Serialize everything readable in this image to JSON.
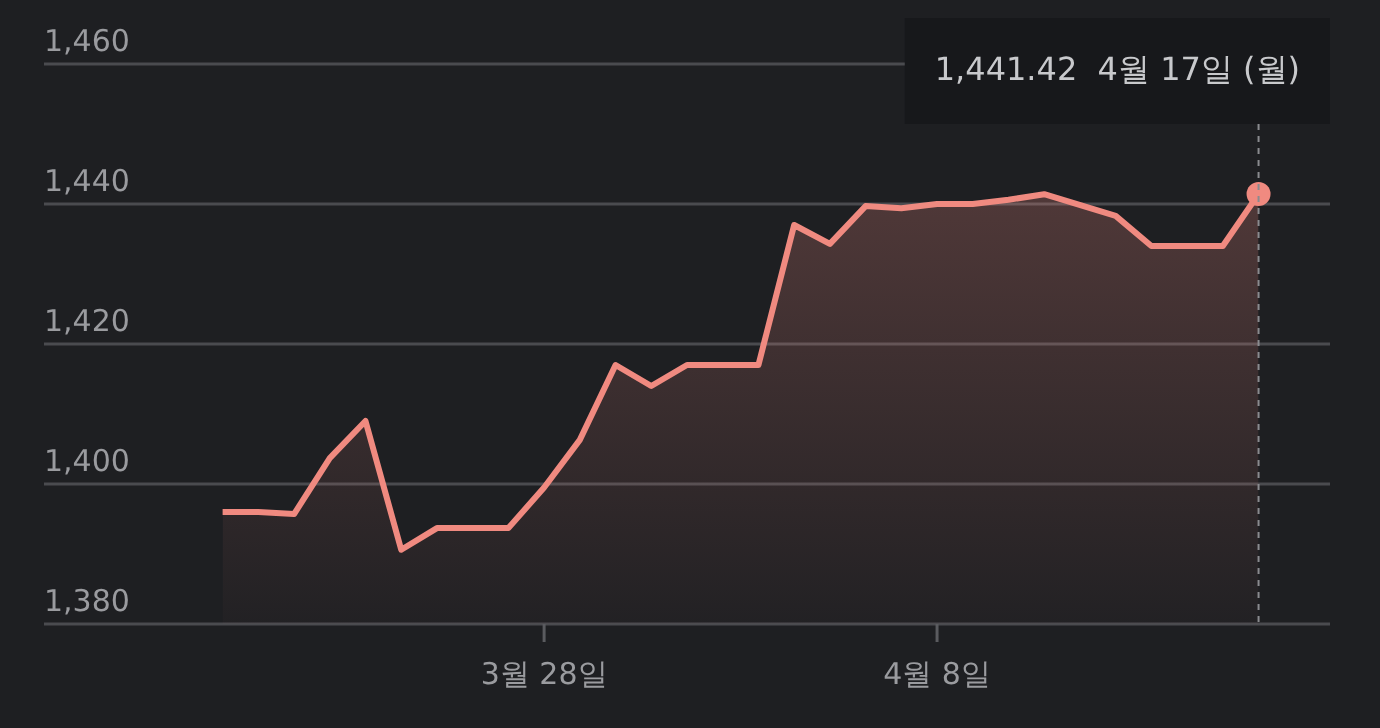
{
  "chart_data": {
    "type": "area",
    "color": "#f08a80",
    "x": [
      "--03-19",
      "--03-20",
      "--03-21",
      "--03-22",
      "--03-23",
      "--03-24",
      "--03-25",
      "--03-26",
      "--03-27",
      "--03-28",
      "--03-29",
      "--03-30",
      "--03-31",
      "--04-01",
      "--04-02",
      "--04-03",
      "--04-04",
      "--04-05",
      "--04-06",
      "--04-07",
      "--04-08",
      "--04-09",
      "--04-10",
      "--04-11",
      "--04-12",
      "--04-13",
      "--04-14",
      "--04-15",
      "--04-16",
      "--04-17"
    ],
    "values": [
      1396,
      1396,
      1395.7,
      1403.7,
      1409,
      1390.6,
      1393.7,
      1393.7,
      1393.7,
      1399.5,
      1406.3,
      1417,
      1414,
      1417,
      1417,
      1417,
      1437,
      1434.3,
      1439.7,
      1439.4,
      1440,
      1440,
      1440.6,
      1441.4,
      null,
      1438.3,
      1434,
      1434,
      1434,
      1441.42
    ],
    "xlim": [
      "--03-14",
      "--04-19"
    ],
    "xticks": [
      {
        "value": "--03-28",
        "label": "3월 28일"
      },
      {
        "value": "--04-08",
        "label": "4월 8일"
      }
    ],
    "ylim": [
      1380,
      1460
    ],
    "yticks": [
      {
        "value": 1380,
        "label": "1,380"
      },
      {
        "value": 1400,
        "label": "1,400"
      },
      {
        "value": 1420,
        "label": "1,420"
      },
      {
        "value": 1440,
        "label": "1,440"
      },
      {
        "value": 1460,
        "label": "1,460"
      }
    ],
    "grid": "y",
    "marker": "none",
    "line_style": "solid",
    "ref_lines": [
      {
        "axis": "x",
        "value": "--04-17",
        "color": "#8a8b8f",
        "line_style": "dashed"
      }
    ],
    "annotations": [
      "1,441.42  4월 17일 (월)"
    ]
  }
}
